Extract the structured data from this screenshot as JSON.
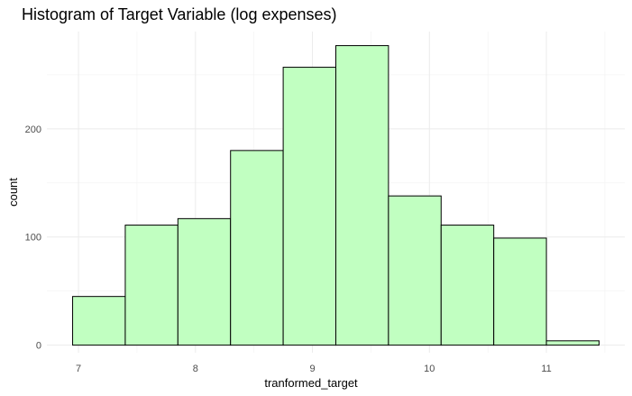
{
  "chart_data": {
    "type": "bar",
    "title": "Histogram of Target Variable (log expenses)",
    "xlabel": "tranformed_target",
    "ylabel": "count",
    "bin_edges": [
      6.95,
      7.4,
      7.85,
      8.3,
      8.75,
      9.2,
      9.65,
      10.1,
      10.55,
      11.0,
      11.45
    ],
    "values": [
      45,
      111,
      117,
      180,
      257,
      277,
      138,
      111,
      99,
      4
    ],
    "xlim": [
      6.73,
      11.67
    ],
    "ylim": [
      -7,
      290
    ],
    "x_ticks": [
      7,
      8,
      9,
      10,
      11
    ],
    "x_tick_labels": [
      "7",
      "8",
      "9",
      "10",
      "11"
    ],
    "y_ticks": [
      0,
      100,
      200
    ],
    "y_tick_labels": [
      "0",
      "100",
      "200"
    ],
    "bar_fill": "#c1ffc1",
    "bar_stroke": "#000000",
    "grid": true,
    "legend": "none"
  }
}
